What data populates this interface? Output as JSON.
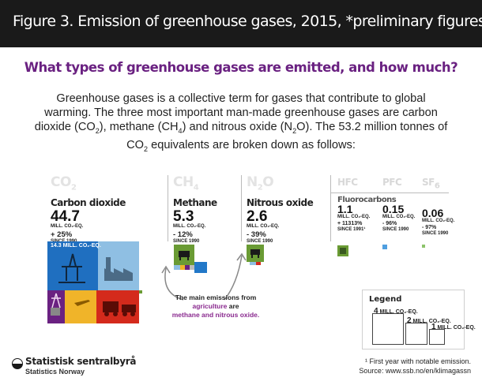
{
  "figure_title": "Figure 3. Emission of greenhouse gases, 2015, *preliminary figures",
  "subtitle": "What types of greenhouse gases are emitted, and how much?",
  "intro": {
    "p1": "Greenhouse gases is a collective term for gases that contribute to global warming. The three most important man-made greenhouse gases are carbon dioxide (CO",
    "s1": "2",
    "p2": "), methane (CH",
    "s2": "4",
    "p3": ") and nitrous oxide (N",
    "s3": "2",
    "p4": "O). The 53.2 million tonnes of CO",
    "s4": "2",
    "p5": " equivalents are broken down as follows:"
  },
  "chart_data": {
    "type": "treemap",
    "unit": "MILL. CO₂-EQ.",
    "change_label": "SINCE 1990",
    "series": [
      {
        "formula": "CO",
        "formula_sub": "2",
        "name": "Carbon dioxide",
        "value": 44.7,
        "value_label": "44.7",
        "change": "+ 25%",
        "change_note": "SINCE 1990",
        "color": "#2278c8"
      },
      {
        "formula": "CH",
        "formula_sub": "4",
        "name": "Methane",
        "value": 5.3,
        "value_label": "5.3",
        "change": "- 12%",
        "change_note": "SINCE 1990",
        "color": "#6a9b34"
      },
      {
        "formula": "N",
        "formula_sub": "2",
        "formula_tail": "O",
        "name": "Nitrous oxide",
        "value": 2.6,
        "value_label": "2.6",
        "change": "- 39%",
        "change_note": "SINCE 1990",
        "color": "#6a9b34"
      },
      {
        "formula": "HFC",
        "formula_sub": "",
        "group": "Fluorocarbons",
        "value": 1.1,
        "value_label": "1.1",
        "change": "+ 11313%",
        "change_note": "SINCE 1991¹",
        "color": "#6a9b34"
      },
      {
        "formula": "PFC",
        "formula_sub": "",
        "value": 0.15,
        "value_label": "0.15",
        "change": "- 96%",
        "change_note": "SINCE 1990",
        "color": "#4f9fe0"
      },
      {
        "formula": "SF",
        "formula_sub": "6",
        "value": 0.06,
        "value_label": "0.06",
        "change": "- 97%",
        "change_note": "SINCE 1990",
        "color": "#8cc36a"
      }
    ],
    "co2_breakdown_label": "14.3 MILL. CO₂-EQ.",
    "co2_breakdown_value": 14.3,
    "colors": {
      "oil_gas": "#1f6fc0",
      "industry": "#8fbfe3",
      "energy": "#6a2181",
      "transport": "#d42a1c",
      "other": "#f0b429",
      "agriculture": "#6a9b34"
    }
  },
  "note": {
    "line1": "The main emissions from",
    "hl": "agriculture",
    "mid": " are",
    "line3": "methane and nitrous oxide."
  },
  "legend": {
    "title": "Legend",
    "items": [
      {
        "value": "4",
        "unit": "MILL. CO₂-EQ."
      },
      {
        "value": "2",
        "unit": "MILL. CO₂-EQ."
      },
      {
        "value": "1",
        "unit": "MILL. CO₂-EQ."
      }
    ]
  },
  "brand": {
    "name": "Statistisk sentralbyrå",
    "name_en": "Statistics Norway"
  },
  "footnote": "¹ First year with notable emission.",
  "source": "Source: www.ssb.no/en/klimagassn"
}
